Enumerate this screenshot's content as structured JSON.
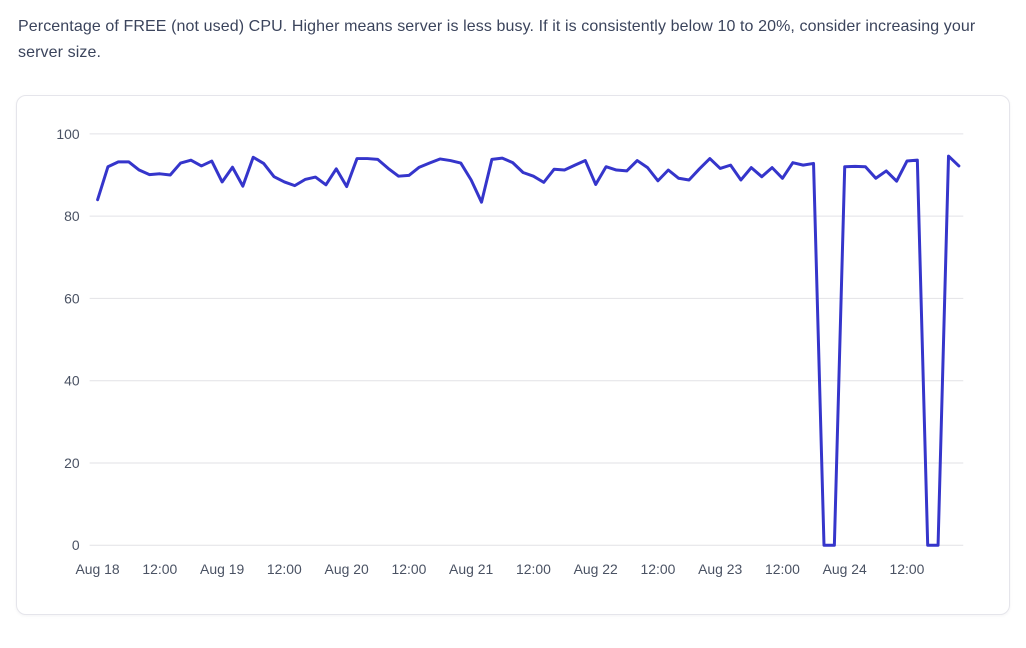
{
  "page": {
    "description": "Percentage of FREE (not used) CPU. Higher means server is less busy. If it is consistently below 10 to 20%, consider increasing your server size."
  },
  "colors": {
    "line": "#3535cb",
    "grid": "#e2e2e6",
    "axis_text": "#4a5263",
    "description_text": "#3b445c",
    "card_border": "#e5e5eb",
    "background": "#ffffff"
  },
  "chart_data": {
    "type": "line",
    "title": "",
    "xlabel": "",
    "ylabel": "",
    "ylim": [
      0,
      100
    ],
    "grid": "horizontal",
    "legend": "none",
    "y_ticks": [
      100,
      80,
      60,
      40,
      20,
      0
    ],
    "x_tick_labels": [
      "Aug 18",
      "12:00",
      "Aug 19",
      "12:00",
      "Aug 20",
      "12:00",
      "Aug 21",
      "12:00",
      "Aug 22",
      "12:00",
      "Aug 23",
      "12:00",
      "Aug 24",
      "12:00"
    ],
    "x_tick_hours": [
      0,
      12,
      24,
      36,
      48,
      60,
      72,
      84,
      96,
      108,
      120,
      132,
      144,
      156
    ],
    "x_unit": "hours since Aug 18 00:00",
    "x_step_hours": 2,
    "x_range_hours": [
      0,
      166
    ],
    "series": [
      {
        "name": "free-cpu-percent",
        "color": "#3535cb",
        "values": [
          84,
          92,
          93.2,
          93.2,
          91.2,
          90.1,
          90.3,
          90,
          92.9,
          93.6,
          92.2,
          93.4,
          88.3,
          91.9,
          87.3,
          94.3,
          92.8,
          89.6,
          88.3,
          87.4,
          88.9,
          89.5,
          87.6,
          91.5,
          87.2,
          94,
          94,
          93.8,
          91.6,
          89.7,
          89.9,
          91.9,
          92.9,
          93.9,
          93.5,
          92.9,
          88.8,
          83.4,
          93.8,
          94.1,
          93,
          90.6,
          89.7,
          88.2,
          91.4,
          91.2,
          92.4,
          93.5,
          87.7,
          92,
          91.2,
          91,
          93.5,
          91.8,
          88.6,
          91.2,
          89.2,
          88.8,
          91.5,
          94,
          91.6,
          92.4,
          88.8,
          91.8,
          89.6,
          91.8,
          89.2,
          93,
          92.4,
          92.8,
          0,
          0,
          92,
          92.1,
          92,
          89.2,
          91,
          88.5,
          93.4,
          93.6,
          0,
          0,
          94.6,
          92.2
        ]
      }
    ]
  }
}
